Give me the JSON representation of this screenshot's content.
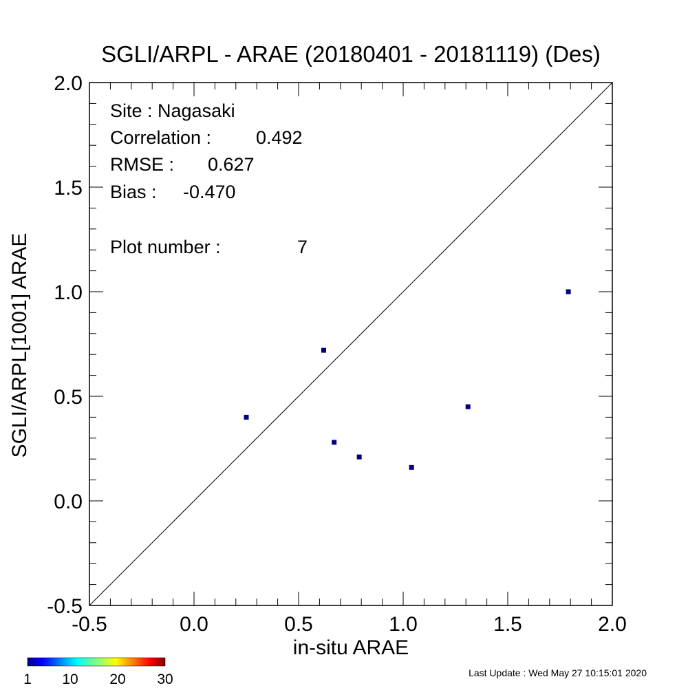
{
  "chart_data": {
    "type": "scatter",
    "title": "SGLI/ARPL - ARAE (20180401 - 20181119) (Des)",
    "xlabel": "in-situ ARAE",
    "ylabel": "SGLI/ARPL[1001]    ARAE",
    "xlim": [
      -0.5,
      2.0
    ],
    "ylim": [
      -0.5,
      2.0
    ],
    "xticks": [
      "-0.5",
      "0.0",
      "0.5",
      "1.0",
      "1.5",
      "2.0"
    ],
    "yticks": [
      "-0.5",
      "0.0",
      "0.5",
      "1.0",
      "1.5",
      "2.0"
    ],
    "reference_line": "1:1",
    "grid": false,
    "point_color": "#00007f",
    "points": [
      {
        "x": 0.25,
        "y": 0.4
      },
      {
        "x": 0.62,
        "y": 0.72
      },
      {
        "x": 0.67,
        "y": 0.28
      },
      {
        "x": 0.79,
        "y": 0.21
      },
      {
        "x": 1.04,
        "y": 0.16
      },
      {
        "x": 1.31,
        "y": 0.45
      },
      {
        "x": 1.79,
        "y": 1.0
      }
    ],
    "annotations": {
      "site": "Site : Nagasaki",
      "correlation_label": "Correlation :",
      "correlation_value": "0.492",
      "rmse_label": "RMSE :",
      "rmse_value": "0.627",
      "bias_label": "Bias :",
      "bias_value": "-0.470",
      "plot_number_label": "Plot number :",
      "plot_number_value": "7"
    },
    "colorbar": {
      "colormap": "jet",
      "tick_labels": [
        "1",
        "10",
        "20",
        "30"
      ]
    }
  },
  "footer": {
    "last_update": "Last Update : Wed May 27 10:15:01 2020"
  }
}
